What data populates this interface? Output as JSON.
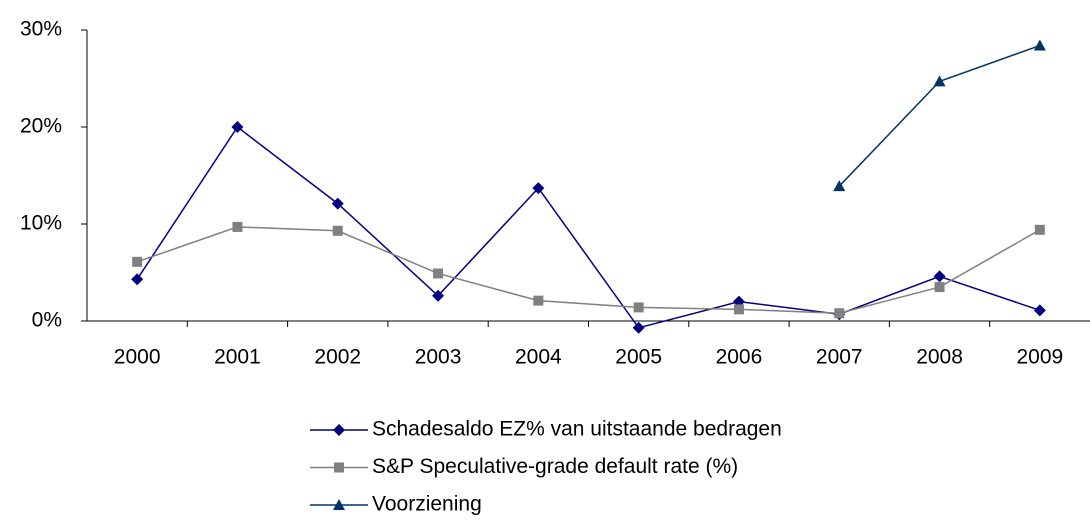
{
  "chart_data": {
    "type": "line",
    "categories": [
      "2000",
      "2001",
      "2002",
      "2003",
      "2004",
      "2005",
      "2006",
      "2007",
      "2008",
      "2009"
    ],
    "series": [
      {
        "name": "Schadesaldo EZ% van uitstaande bedragen",
        "color": "#000080",
        "marker": "diamond",
        "values": [
          4.3,
          20.0,
          12.1,
          2.6,
          13.7,
          -0.7,
          2.0,
          0.7,
          4.6,
          1.1
        ]
      },
      {
        "name": "S&P Speculative-grade default rate (%)",
        "color": "#808080",
        "marker": "square",
        "values": [
          6.1,
          9.7,
          9.3,
          4.9,
          2.1,
          1.4,
          1.2,
          0.8,
          3.5,
          9.4
        ]
      },
      {
        "name": "Voorziening",
        "color": "#003366",
        "marker": "triangle",
        "values": [
          null,
          null,
          null,
          null,
          null,
          null,
          null,
          13.9,
          24.7,
          28.4
        ]
      }
    ],
    "ylim": [
      0,
      30
    ],
    "yticks": [
      {
        "value": 0,
        "label": "0%"
      },
      {
        "value": 10,
        "label": "10%"
      },
      {
        "value": 20,
        "label": "20%"
      },
      {
        "value": 30,
        "label": "30%"
      }
    ],
    "grid": false,
    "legend": "bottom"
  }
}
